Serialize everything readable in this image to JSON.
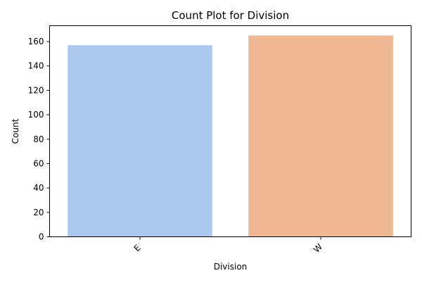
{
  "chart_data": {
    "type": "bar",
    "title": "Count Plot for Division",
    "xlabel": "Division",
    "ylabel": "Count",
    "categories": [
      "E",
      "W"
    ],
    "values": [
      157,
      165
    ],
    "colors": [
      "#abc9ee",
      "#f0b892"
    ],
    "ylim": [
      0,
      173
    ],
    "yticks": [
      "0",
      "20",
      "40",
      "60",
      "80",
      "100",
      "120",
      "140",
      "160"
    ],
    "xtick_rotation_deg": 45,
    "grid": false,
    "legend": "none"
  }
}
